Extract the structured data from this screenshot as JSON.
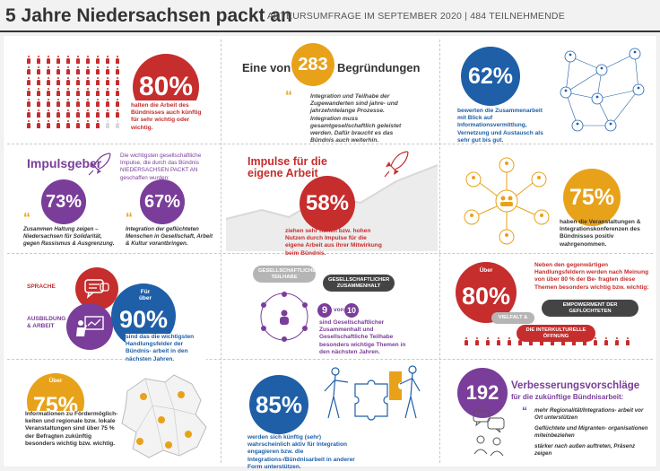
{
  "header": {
    "title": "5 Jahre Niedersachsen packt an",
    "subtitle": "AKTEURSUMFRAGE IM SEPTEMBER 2020 | 484 TEILNEHMENDE"
  },
  "colors": {
    "red": "#c62d2d",
    "purple": "#7a3d9a",
    "blue": "#1e5fa8",
    "orange": "#e8a21a"
  },
  "p1": {
    "value": "80%",
    "text": "halten die Arbeit des Bündnisses auch künftig für sehr wichtig oder wichtig."
  },
  "p2": {
    "pre": "Eine von",
    "value": "283",
    "post": "Begründungen",
    "quote": "Integration und Teilhabe der Zugewanderten sind jahre- und jahrzehntelange Prozesse. Integration muss gesamtgesellschaftlich geleistet werden. Dafür braucht es das Bündnis auch weiterhin."
  },
  "p3": {
    "value": "62%",
    "text": "bewerten die Zusammenarbeit mit Blick auf Informationsvermittlung, Vernetzung und Austausch als sehr gut bis gut."
  },
  "p4": {
    "title": "Impulsgeber",
    "intro": "Die wichtigsten gesellschaftliche Impulse, die durch das Bündnis NIEDERSACHSEN PACKT AN geschaffen wurden:",
    "v1": "73%",
    "t1": "Zusammen Haltung zeigen – Niedersachsen für Solidarität, gegen Rassismus & Ausgrenzung.",
    "v2": "67%",
    "t2": "Integration der geflüchteten Menschen in Gesellschaft, Arbeit & Kultur vorantbringen."
  },
  "p5": {
    "title": "Impulse für die eigene Arbeit",
    "value": "58%",
    "text": "ziehen sehr hohen bzw. hohen Nutzen durch Impulse für die eigene Arbeit aus ihrer Mitwirkung beim Bündnis."
  },
  "p6": {
    "value": "75%",
    "text": "haben die Veranstaltungen & Integrationskonferenzen des Bündnisses positiv wahrgenommen."
  },
  "p7": {
    "label1": "SPRACHE",
    "label2": "AUSBILDUNG & ARBEIT",
    "pre": "Für über",
    "value": "90%",
    "text": "sind das die wichtigsten Handlungsfelder der Bündnis- arbeit in den nächsten Jahren."
  },
  "p8": {
    "bubble1": "GESELLSCHAFTLICHE TEILHABE",
    "bubble2": "GESELLSCHAFTLICHER ZUSAMMENHALT",
    "n1": "9",
    "von": "von",
    "n2": "10",
    "text": "sind Gesellschaftlicher Zusammenhalt und Gesellschaftliche Teilhabe besonders wichtige Themen in den nächsten Jahren."
  },
  "p9": {
    "pre": "Über",
    "value": "80%",
    "text": "Neben den gegenwärtigen Handlungsfeldern werden nach Meinung von über 80 % der Be- fragten diese Themen besonders wichtig bzw. wichtig:",
    "tag1": "EMPOWERMENT DER GEFLÜCHTETEN",
    "tag2": "VIELFALT &",
    "tag3": "DIE INTERKULTURELLE ÖFFNUNG"
  },
  "p10": {
    "pre": "Über",
    "value": "75%",
    "text": "Informationen zu Fördermöglich- keiten und regionale bzw. lokale Veranstaltungen sind über 75 % der Befragten zukünftig besonders wichtig bzw. wichtig."
  },
  "p11": {
    "value": "85%",
    "text": "werden sich künftig (sehr) wahrscheinlich aktiv für Integration engagieren bzw. die Integrations-/Bündnisarbeit in anderer Form unterstützen."
  },
  "p12": {
    "value": "192",
    "title1": "Verbesserungsvorschläge",
    "title2": "für die zukünftige Bündnisarbeit:",
    "q1": "mehr Regionalität/Integrations- arbeit vor Ort unterstützen",
    "q2": "Geflüchtete und Migranten- organisationen miteinbeziehen",
    "q3": "stärker nach außen auftreten, Präsenz zeigen"
  }
}
